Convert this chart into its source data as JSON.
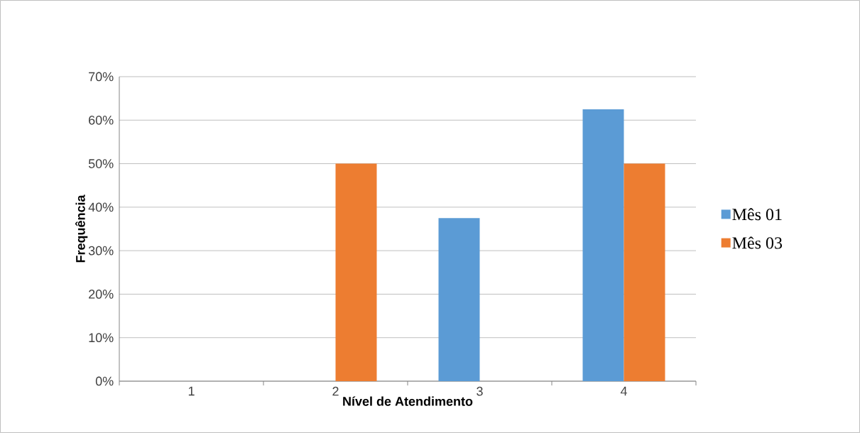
{
  "chart_data": {
    "type": "bar",
    "xlabel": "Nível de Atendimento",
    "ylabel": "Frequência",
    "categories": [
      "1",
      "2",
      "3",
      "4"
    ],
    "series": [
      {
        "name": "Mês 01",
        "color": "#5b9bd5",
        "values": [
          0,
          0,
          37.5,
          62.5
        ]
      },
      {
        "name": "Mês 03",
        "color": "#ed7d31",
        "values": [
          0,
          50,
          0,
          50
        ]
      }
    ],
    "ylim": [
      0,
      70
    ],
    "yticks": [
      {
        "value": 0,
        "label": "0%"
      },
      {
        "value": 10,
        "label": "10%"
      },
      {
        "value": 20,
        "label": "20%"
      },
      {
        "value": 30,
        "label": "30%"
      },
      {
        "value": 40,
        "label": "40%"
      },
      {
        "value": 50,
        "label": "50%"
      },
      {
        "value": 60,
        "label": "60%"
      },
      {
        "value": 70,
        "label": "70%"
      }
    ],
    "grid": "y",
    "legend": "right"
  }
}
